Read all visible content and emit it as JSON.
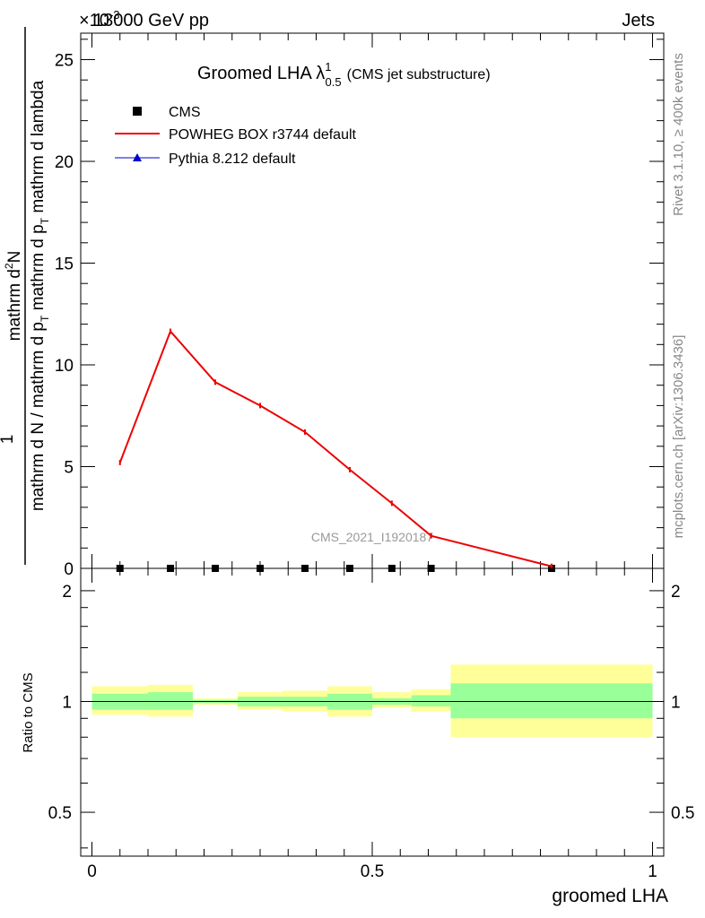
{
  "header": {
    "energy_label": "13000 GeV pp",
    "exponent_label": "×10",
    "exponent_power": "-3",
    "process_label": "Jets"
  },
  "plot": {
    "title_main": "Groomed LHA",
    "title_symbol": "λ",
    "title_sup": "1",
    "title_sub": "0.5",
    "title_note": "(CMS jet substructure)",
    "analysis_id": "CMS_2021_I1920187",
    "side_label_rivet": "Rivet 3.1.10, ≥ 400k events",
    "side_label_source": "mcplots.cern.ch [arXiv:1306.3436]"
  },
  "ylabel_main": {
    "prefix": "1",
    "numerator_top": "mathrm d",
    "numerator_sup": "2",
    "numerator_rest": "N",
    "denominator_left": "mathrm d N / mathrm d p",
    "denominator_left_sub": "T",
    "denominator_right": "mathrm d p",
    "denominator_right_sub": "T",
    "denominator_tail": "mathrm d lambda"
  },
  "legend": [
    {
      "label": "CMS",
      "color": "#000000",
      "marker": "square"
    },
    {
      "label": "POWHEG BOX r3744 default",
      "color": "#ee0000",
      "marker": "line"
    },
    {
      "label": "Pythia 8.212 default",
      "color": "#0000cc",
      "marker": "triangle"
    }
  ],
  "chart_data": [
    {
      "type": "line",
      "panel": "main",
      "xlabel": "groomed LHA",
      "ylabel": "1 / (mathrm d N / mathrm d p_T) mathrm d^2N / (mathrm d p_T mathrm d lambda)",
      "xlim": [
        -0.02,
        1.02
      ],
      "ylim": [
        0,
        26.3
      ],
      "y_scale_exponent": -3,
      "yticks": [
        0,
        5,
        10,
        15,
        20,
        25
      ],
      "series": [
        {
          "name": "CMS",
          "marker": "square",
          "color": "#000000",
          "x": [
            0.05,
            0.14,
            0.22,
            0.3,
            0.38,
            0.46,
            0.535,
            0.605,
            0.82
          ],
          "y": [
            0.0,
            0.0,
            0.0,
            0.0,
            0.0,
            0.0,
            0.0,
            0.0,
            0.0
          ]
        },
        {
          "name": "POWHEG BOX r3744 default",
          "color": "#ee0000",
          "x": [
            0.05,
            0.14,
            0.22,
            0.3,
            0.38,
            0.46,
            0.535,
            0.605,
            0.82
          ],
          "y": [
            5.2,
            11.65,
            9.15,
            8.0,
            6.7,
            4.85,
            3.2,
            1.6,
            0.1
          ]
        }
      ]
    },
    {
      "type": "area",
      "panel": "ratio",
      "xlabel": "groomed LHA",
      "ylabel": "Ratio to CMS",
      "xlim": [
        -0.02,
        1.02
      ],
      "ylim": [
        0.38,
        2.3
      ],
      "yscale": "log",
      "yticks": [
        0.5,
        1,
        2
      ],
      "xticks": [
        0,
        0.5,
        1
      ],
      "reference_line": 1,
      "bins": [
        {
          "xlo": 0.0,
          "xhi": 0.1,
          "green_lo": 0.95,
          "green_hi": 1.05,
          "yellow_lo": 0.92,
          "yellow_hi": 1.1
        },
        {
          "xlo": 0.1,
          "xhi": 0.18,
          "green_lo": 0.95,
          "green_hi": 1.06,
          "yellow_lo": 0.91,
          "yellow_hi": 1.11
        },
        {
          "xlo": 0.18,
          "xhi": 0.26,
          "green_lo": 0.99,
          "green_hi": 1.01,
          "yellow_lo": 0.98,
          "yellow_hi": 1.02
        },
        {
          "xlo": 0.26,
          "xhi": 0.34,
          "green_lo": 0.97,
          "green_hi": 1.03,
          "yellow_lo": 0.95,
          "yellow_hi": 1.06
        },
        {
          "xlo": 0.34,
          "xhi": 0.42,
          "green_lo": 0.97,
          "green_hi": 1.03,
          "yellow_lo": 0.94,
          "yellow_hi": 1.07
        },
        {
          "xlo": 0.42,
          "xhi": 0.5,
          "green_lo": 0.95,
          "green_hi": 1.05,
          "yellow_lo": 0.91,
          "yellow_hi": 1.1
        },
        {
          "xlo": 0.5,
          "xhi": 0.57,
          "green_lo": 0.98,
          "green_hi": 1.02,
          "yellow_lo": 0.96,
          "yellow_hi": 1.06
        },
        {
          "xlo": 0.57,
          "xhi": 0.64,
          "green_lo": 0.97,
          "green_hi": 1.04,
          "yellow_lo": 0.94,
          "yellow_hi": 1.08
        },
        {
          "xlo": 0.64,
          "xhi": 1.0,
          "green_lo": 0.9,
          "green_hi": 1.12,
          "yellow_lo": 0.8,
          "yellow_hi": 1.26
        }
      ]
    }
  ],
  "colors": {
    "band_inner": "#99ff99",
    "band_outer": "#ffff99",
    "side_text": "#888888",
    "watermark": "#999999"
  }
}
